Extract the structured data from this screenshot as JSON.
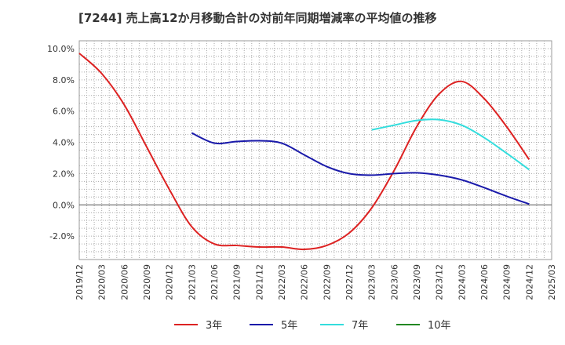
{
  "chart_data": {
    "type": "line",
    "title": "[7244]  売上高12か月移動合計の対前年同期増減率の平均値の推移",
    "xlabel": "",
    "ylabel": "",
    "x_ticks": [
      "2019/12",
      "2020/03",
      "2020/06",
      "2020/09",
      "2020/12",
      "2021/03",
      "2021/06",
      "2021/09",
      "2021/12",
      "2022/03",
      "2022/06",
      "2022/09",
      "2022/12",
      "2023/03",
      "2023/06",
      "2023/09",
      "2023/12",
      "2024/03",
      "2024/06",
      "2024/09",
      "2024/12",
      "2025/03"
    ],
    "y_ticks": [
      "-2.0%",
      "0.0%",
      "2.0%",
      "4.0%",
      "6.0%",
      "8.0%",
      "10.0%"
    ],
    "ylim": [
      -3.5,
      10.5
    ],
    "y_unit": "%",
    "grid": true,
    "legend_position": "bottom",
    "series": [
      {
        "name": "3年",
        "color": "#dd2222",
        "points": [
          [
            "2019/12",
            9.7
          ],
          [
            "2020/03",
            8.4
          ],
          [
            "2020/06",
            6.4
          ],
          [
            "2020/09",
            3.7
          ],
          [
            "2020/12",
            1.0
          ],
          [
            "2021/03",
            -1.4
          ],
          [
            "2021/06",
            -2.5
          ],
          [
            "2021/09",
            -2.6
          ],
          [
            "2021/12",
            -2.7
          ],
          [
            "2022/03",
            -2.7
          ],
          [
            "2022/06",
            -2.85
          ],
          [
            "2022/09",
            -2.6
          ],
          [
            "2022/12",
            -1.8
          ],
          [
            "2023/03",
            -0.2
          ],
          [
            "2023/06",
            2.2
          ],
          [
            "2023/09",
            5.0
          ],
          [
            "2023/12",
            7.1
          ],
          [
            "2024/03",
            7.9
          ],
          [
            "2024/06",
            6.8
          ],
          [
            "2024/09",
            5.0
          ],
          [
            "2024/12",
            2.9
          ]
        ]
      },
      {
        "name": "5年",
        "color": "#1a1aaa",
        "points": [
          [
            "2021/03",
            4.6
          ],
          [
            "2021/06",
            3.95
          ],
          [
            "2021/09",
            4.05
          ],
          [
            "2021/12",
            4.1
          ],
          [
            "2022/03",
            3.95
          ],
          [
            "2022/06",
            3.2
          ],
          [
            "2022/09",
            2.45
          ],
          [
            "2022/12",
            2.0
          ],
          [
            "2023/03",
            1.9
          ],
          [
            "2023/06",
            2.0
          ],
          [
            "2023/09",
            2.05
          ],
          [
            "2023/12",
            1.9
          ],
          [
            "2024/03",
            1.6
          ],
          [
            "2024/06",
            1.1
          ],
          [
            "2024/09",
            0.55
          ],
          [
            "2024/12",
            0.05
          ]
        ]
      },
      {
        "name": "7年",
        "color": "#33dddd",
        "points": [
          [
            "2023/03",
            4.8
          ],
          [
            "2023/06",
            5.1
          ],
          [
            "2023/09",
            5.4
          ],
          [
            "2023/12",
            5.45
          ],
          [
            "2024/03",
            5.1
          ],
          [
            "2024/06",
            4.3
          ],
          [
            "2024/09",
            3.3
          ],
          [
            "2024/12",
            2.25
          ]
        ]
      },
      {
        "name": "10年",
        "color": "#228822",
        "points": []
      }
    ]
  }
}
